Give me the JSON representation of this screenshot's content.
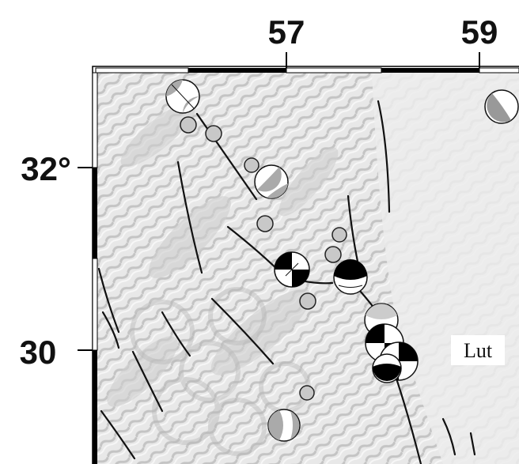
{
  "axes": {
    "top_ticks": [
      "57",
      "59"
    ],
    "left_ticks": [
      "32°",
      "30"
    ]
  },
  "region_label": "Lut",
  "colors": {
    "frame": "#000000",
    "relief_base": "#e9e9e9",
    "relief_dark": "#bdbdbd",
    "fault": "#111111",
    "compression_quadrant": "#000000",
    "dilatation_quadrant": "#ffffff",
    "epicenter_fill": "#c8c8c8"
  },
  "features": {
    "faults": "active-fault-traces",
    "mechanisms": "focal-mechanism-beachballs",
    "epicenters": "earthquake-epicenters"
  }
}
